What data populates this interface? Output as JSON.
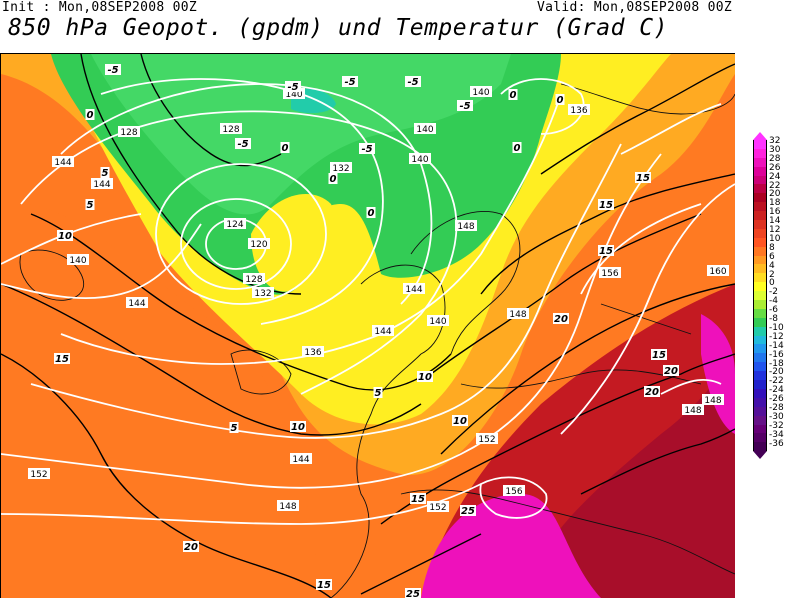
{
  "header": {
    "init": "Init : Mon,08SEP2008  00Z",
    "valid": "Valid: Mon,08SEP2008  00Z",
    "title": "850 hPa Geopot. (gpdm) und Temperatur (Grad C)"
  },
  "colorbar": {
    "labels": [
      "32",
      "30",
      "28",
      "26",
      "24",
      "22",
      "20",
      "18",
      "16",
      "14",
      "12",
      "10",
      "8",
      "6",
      "4",
      "2",
      "0",
      "-2",
      "-4",
      "-6",
      "-8",
      "-10",
      "-12",
      "-14",
      "-16",
      "-18",
      "-20",
      "-22",
      "-24",
      "-26",
      "-28",
      "-30",
      "-32",
      "-34",
      "-36"
    ],
    "colors": [
      "#ff33ff",
      "#ff22dd",
      "#ee11bb",
      "#dd0099",
      "#cc0077",
      "#bb0044",
      "#aa0022",
      "#bb1122",
      "#cc2222",
      "#dd3322",
      "#ee4422",
      "#ff5522",
      "#ff7722",
      "#ff9922",
      "#ffbb22",
      "#ffdd22",
      "#ffff22",
      "#ddff33",
      "#aaee33",
      "#66dd44",
      "#33cc55",
      "#22ccaa",
      "#22bbdd",
      "#2299ee",
      "#2277ee",
      "#2255ee",
      "#2233dd",
      "#2222cc",
      "#3311bb",
      "#4411aa",
      "#551199",
      "#661188",
      "#660077",
      "#550066",
      "#440055"
    ]
  },
  "map": {
    "geopotential_labels": [
      "120",
      "124",
      "128",
      "128",
      "128",
      "132",
      "132",
      "136",
      "136",
      "140",
      "140",
      "140",
      "140",
      "140",
      "140",
      "144",
      "144",
      "144",
      "144",
      "144",
      "144",
      "148",
      "148",
      "148",
      "148",
      "148",
      "152",
      "152",
      "152",
      "156",
      "156",
      "160"
    ],
    "temperature_labels": [
      "-5",
      "-5",
      "-5",
      "-5",
      "-5",
      "-5",
      "-5",
      "0",
      "0",
      "0",
      "0",
      "0",
      "0",
      "0",
      "5",
      "5",
      "5",
      "5",
      "10",
      "10",
      "10",
      "10",
      "15",
      "15",
      "15",
      "15",
      "15",
      "15",
      "15",
      "20",
      "20",
      "20",
      "20",
      "25",
      "25"
    ]
  }
}
